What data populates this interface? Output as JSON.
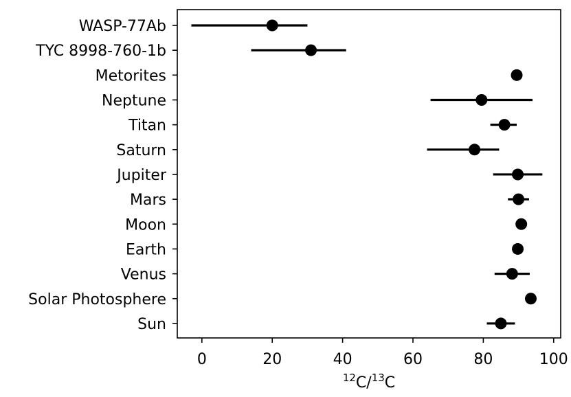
{
  "chart_data": {
    "type": "scatter",
    "title": "",
    "xlabel": {
      "pre": "12",
      "a": "C/",
      "sup": "13",
      "b": "C"
    },
    "ylabel": "",
    "xlim": [
      -7,
      102
    ],
    "xticks": [
      0,
      20,
      40,
      60,
      80,
      100
    ],
    "grid": false,
    "legend": "none",
    "marker_color": "#000000",
    "points": [
      {
        "label": "WASP-77Ab",
        "value": 20,
        "err_low": 23,
        "err_high": 10
      },
      {
        "label": "TYC 8998-760-1b",
        "value": 31,
        "err_low": 17,
        "err_high": 10
      },
      {
        "label": "Metorites",
        "value": 89.5,
        "err_low": 0,
        "err_high": 0
      },
      {
        "label": "Neptune",
        "value": 79.5,
        "err_low": 14.5,
        "err_high": 14.5
      },
      {
        "label": "Titan",
        "value": 86,
        "err_low": 4,
        "err_high": 3.5
      },
      {
        "label": "Saturn",
        "value": 77.5,
        "err_low": 13.5,
        "err_high": 7
      },
      {
        "label": "Jupiter",
        "value": 89.8,
        "err_low": 7,
        "err_high": 7
      },
      {
        "label": "Mars",
        "value": 90,
        "err_low": 3,
        "err_high": 3
      },
      {
        "label": "Moon",
        "value": 90.8,
        "err_low": 0,
        "err_high": 0
      },
      {
        "label": "Earth",
        "value": 89.8,
        "err_low": 0,
        "err_high": 0
      },
      {
        "label": "Venus",
        "value": 88.2,
        "err_low": 5,
        "err_high": 5
      },
      {
        "label": "Solar Photosphere",
        "value": 93.5,
        "err_low": 0,
        "err_high": 0
      },
      {
        "label": "Sun",
        "value": 85,
        "err_low": 4,
        "err_high": 4
      }
    ]
  }
}
